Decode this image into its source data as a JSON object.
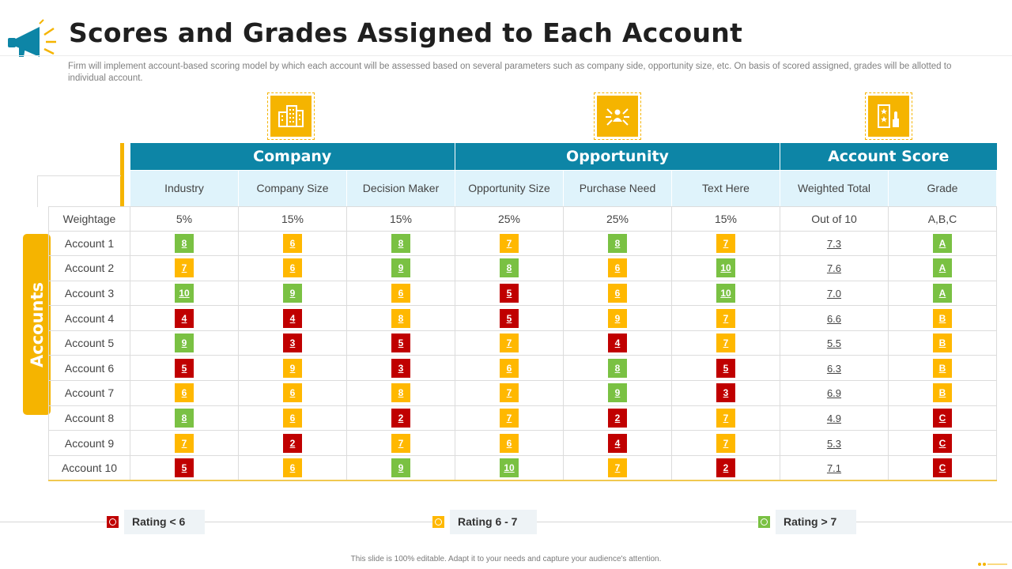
{
  "header": {
    "title": "Scores and Grades Assigned to Each Account",
    "subtitle": "Firm will implement account-based scoring model by which each account will be assessed based on several parameters such as company side, opportunity size, etc. On basis of scored assigned, grades will be allotted to individual account."
  },
  "colors": {
    "accent": "#f5b400",
    "header_blue": "#0d85a6",
    "red": "#c00000",
    "yellow": "#ffb800",
    "green": "#7ac143"
  },
  "icons": {
    "company": "building-icon",
    "opportunity": "network-person-icon",
    "account_score": "scorecard-icon",
    "header": "megaphone-icon"
  },
  "side_label": "Accounts",
  "table": {
    "groups": [
      "Company",
      "Opportunity",
      "Account Score"
    ],
    "columns": [
      "Industry",
      "Company Size",
      "Decision Maker",
      "Opportunity Size",
      "Purchase Need",
      "Text Here",
      "Weighted Total",
      "Grade"
    ],
    "weightage": {
      "label": "Weightage",
      "values": [
        "5%",
        "15%",
        "15%",
        "25%",
        "25%",
        "15%",
        "Out of 10",
        "A,B,C"
      ]
    },
    "rows": [
      {
        "label": "Account 1",
        "scores": [
          "8",
          "6",
          "8",
          "7",
          "8",
          "7"
        ],
        "total": "7.3",
        "grade": "A"
      },
      {
        "label": "Account 2",
        "scores": [
          "7",
          "6",
          "9",
          "8",
          "6",
          "10"
        ],
        "total": "7.6",
        "grade": "A"
      },
      {
        "label": "Account 3",
        "scores": [
          "10",
          "9",
          "6",
          "5",
          "6",
          "10"
        ],
        "total": "7.0",
        "grade": "A"
      },
      {
        "label": "Account 4",
        "scores": [
          "4",
          "4",
          "8",
          "5",
          "9",
          "7"
        ],
        "total": "6.6",
        "grade": "B"
      },
      {
        "label": "Account 5",
        "scores": [
          "9",
          "3",
          "5",
          "7",
          "4",
          "7"
        ],
        "total": "5.5",
        "grade": "B"
      },
      {
        "label": "Account 6",
        "scores": [
          "5",
          "9",
          "3",
          "6",
          "8",
          "5"
        ],
        "total": "6.3",
        "grade": "B"
      },
      {
        "label": "Account 7",
        "scores": [
          "6",
          "6",
          "8",
          "7",
          "9",
          "3"
        ],
        "total": "6.9",
        "grade": "B"
      },
      {
        "label": "Account 8",
        "scores": [
          "8",
          "6",
          "2",
          "7",
          "2",
          "7"
        ],
        "total": "4.9",
        "grade": "C"
      },
      {
        "label": "Account 9",
        "scores": [
          "7",
          "2",
          "7",
          "6",
          "4",
          "7"
        ],
        "total": "5.3",
        "grade": "C"
      },
      {
        "label": "Account 10",
        "scores": [
          "5",
          "6",
          "9",
          "10",
          "7",
          "2"
        ],
        "total": "7.1",
        "grade": "C"
      }
    ],
    "score_colors": [
      [
        "green",
        "yellow",
        "green",
        "yellow",
        "green",
        "yellow"
      ],
      [
        "yellow",
        "yellow",
        "green",
        "green",
        "yellow",
        "green"
      ],
      [
        "green",
        "green",
        "yellow",
        "red",
        "yellow",
        "green"
      ],
      [
        "red",
        "red",
        "yellow",
        "red",
        "yellow",
        "yellow"
      ],
      [
        "green",
        "red",
        "red",
        "yellow",
        "red",
        "yellow"
      ],
      [
        "red",
        "yellow",
        "red",
        "yellow",
        "green",
        "red"
      ],
      [
        "yellow",
        "yellow",
        "yellow",
        "yellow",
        "green",
        "red"
      ],
      [
        "green",
        "yellow",
        "red",
        "yellow",
        "red",
        "yellow"
      ],
      [
        "yellow",
        "red",
        "yellow",
        "yellow",
        "red",
        "yellow"
      ],
      [
        "red",
        "yellow",
        "green",
        "green",
        "yellow",
        "red"
      ]
    ],
    "grade_colors": {
      "A": "green",
      "B": "yellow",
      "C": "red"
    }
  },
  "legend": [
    {
      "label": "Rating < 6",
      "color": "red"
    },
    {
      "label": "Rating 6 - 7",
      "color": "yellow"
    },
    {
      "label": "Rating > 7",
      "color": "green"
    }
  ],
  "footer": "This slide is 100% editable. Adapt it to your needs and capture your audience's attention."
}
